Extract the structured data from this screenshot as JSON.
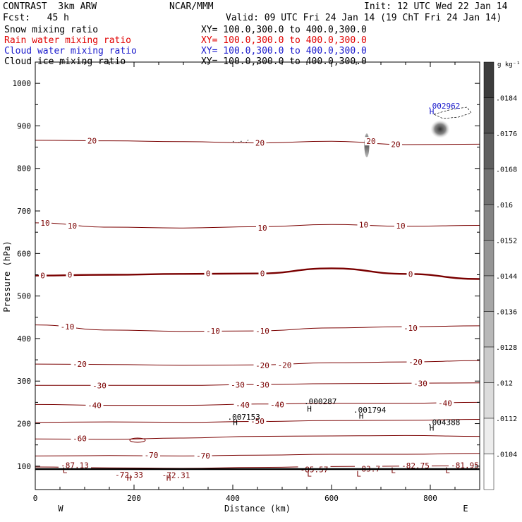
{
  "header": {
    "model": "CONTRAST  3km ARW",
    "org": "NCAR/MMM",
    "init": "Init: 12 UTC Wed 22 Jan 14",
    "fcst": "Fcst:   45 h",
    "valid": "Valid: 09 UTC Fri 24 Jan 14 (19 ChT Fri 24 Jan 14)"
  },
  "fields": [
    {
      "label": "Snow mixing ratio",
      "xy": "XY= 100.0,300.0 to 400.0,300.0",
      "color": "#000000"
    },
    {
      "label": "Rain water mixing ratio",
      "xy": "XY= 100.0,300.0 to 400.0,300.0",
      "color": "#e00000"
    },
    {
      "label": "Cloud water mixing ratio",
      "xy": "XY= 100.0,300.0 to 400.0,300.0",
      "color": "#1a1acc"
    },
    {
      "label": "Cloud ice mixing ratio",
      "xy": "XY= 100.0,300.0 to 400.0,300.0",
      "color": "#000000"
    }
  ],
  "chart_data": {
    "type": "cross-section contour",
    "xlabel": "Distance (km)",
    "ylabel": "Pressure (hPa)",
    "xlim": [
      0,
      900
    ],
    "ylim": [
      1050,
      45
    ],
    "x_ticks": [
      0,
      200,
      400,
      600,
      800
    ],
    "y_ticks": [
      100,
      200,
      300,
      400,
      500,
      600,
      700,
      800,
      900,
      1000
    ],
    "end_labels": {
      "left": "W",
      "right": "E"
    },
    "colorbar": {
      "units": "g kg⁻¹",
      "labels": [
        ".0184",
        ".0176",
        ".0168",
        ".016",
        ".0152",
        ".0144",
        ".0136",
        ".0128",
        ".012",
        ".0112",
        ".0104"
      ]
    },
    "temperature_contours": [
      {
        "level": -80,
        "points": [
          [
            0,
            98
          ],
          [
            150,
            96
          ],
          [
            300,
            95
          ],
          [
            450,
            97
          ],
          [
            600,
            99
          ],
          [
            750,
            100
          ],
          [
            900,
            101
          ]
        ]
      },
      {
        "level": -70,
        "points": [
          [
            0,
            124
          ],
          [
            150,
            125
          ],
          [
            300,
            124
          ],
          [
            450,
            126
          ],
          [
            600,
            128
          ],
          [
            750,
            128
          ],
          [
            900,
            130
          ]
        ]
      },
      {
        "level": -60,
        "points": [
          [
            0,
            164
          ],
          [
            150,
            163
          ],
          [
            300,
            166
          ],
          [
            450,
            170
          ],
          [
            600,
            171
          ],
          [
            750,
            172
          ],
          [
            900,
            170
          ]
        ]
      },
      {
        "level": -50,
        "points": [
          [
            0,
            203
          ],
          [
            150,
            204
          ],
          [
            300,
            203
          ],
          [
            450,
            205
          ],
          [
            600,
            207
          ],
          [
            750,
            208
          ],
          [
            900,
            210
          ]
        ]
      },
      {
        "level": -40,
        "points": [
          [
            0,
            245
          ],
          [
            150,
            243
          ],
          [
            300,
            243
          ],
          [
            450,
            246
          ],
          [
            600,
            248
          ],
          [
            750,
            248
          ],
          [
            900,
            250
          ]
        ]
      },
      {
        "level": -30,
        "points": [
          [
            0,
            290
          ],
          [
            150,
            290
          ],
          [
            300,
            290
          ],
          [
            450,
            292
          ],
          [
            600,
            294
          ],
          [
            750,
            295
          ],
          [
            900,
            296
          ]
        ]
      },
      {
        "level": -20,
        "points": [
          [
            0,
            340
          ],
          [
            150,
            339
          ],
          [
            300,
            337
          ],
          [
            450,
            338
          ],
          [
            600,
            343
          ],
          [
            750,
            345
          ],
          [
            900,
            348
          ]
        ]
      },
      {
        "level": -10,
        "points": [
          [
            0,
            432
          ],
          [
            150,
            420
          ],
          [
            300,
            417
          ],
          [
            450,
            418
          ],
          [
            600,
            425
          ],
          [
            750,
            428
          ],
          [
            900,
            430
          ]
        ]
      },
      {
        "level": 0,
        "points": [
          [
            0,
            548
          ],
          [
            150,
            550
          ],
          [
            300,
            552
          ],
          [
            450,
            553
          ],
          [
            600,
            565
          ],
          [
            750,
            552
          ],
          [
            900,
            540
          ]
        ]
      },
      {
        "level": 10,
        "points": [
          [
            0,
            672
          ],
          [
            150,
            662
          ],
          [
            300,
            660
          ],
          [
            450,
            663
          ],
          [
            600,
            668
          ],
          [
            750,
            664
          ],
          [
            900,
            666
          ]
        ]
      },
      {
        "level": 20,
        "points": [
          [
            0,
            866
          ],
          [
            150,
            865
          ],
          [
            300,
            863
          ],
          [
            450,
            860
          ],
          [
            600,
            864
          ],
          [
            750,
            856
          ],
          [
            900,
            857
          ]
        ]
      }
    ],
    "temperature_labels": [
      {
        "text": "-87.13",
        "x": 80,
        "p": 102
      },
      {
        "text": "-72.33",
        "x": 190,
        "p": 80
      },
      {
        "text": "-72.31",
        "x": 285,
        "p": 79
      },
      {
        "text": "-85.57",
        "x": 565,
        "p": 92
      },
      {
        "text": "-83.7",
        "x": 675,
        "p": 94
      },
      {
        "text": "-82.75",
        "x": 770,
        "p": 101
      },
      {
        "text": "-81.95",
        "x": 870,
        "p": 102
      },
      {
        "text": "-70",
        "x": 235,
        "p": 126
      },
      {
        "text": "-70",
        "x": 340,
        "p": 125
      },
      {
        "text": "-60",
        "x": 90,
        "p": 165
      },
      {
        "text": "-50",
        "x": 450,
        "p": 206
      },
      {
        "text": "-40",
        "x": 120,
        "p": 243
      },
      {
        "text": "-40",
        "x": 420,
        "p": 244
      },
      {
        "text": "-40",
        "x": 490,
        "p": 245
      },
      {
        "text": "-40",
        "x": 830,
        "p": 248
      },
      {
        "text": "-30",
        "x": 130,
        "p": 290
      },
      {
        "text": "-30",
        "x": 410,
        "p": 291
      },
      {
        "text": "-30",
        "x": 460,
        "p": 291
      },
      {
        "text": "-30",
        "x": 780,
        "p": 295
      },
      {
        "text": "-20",
        "x": 90,
        "p": 340
      },
      {
        "text": "-20",
        "x": 460,
        "p": 337
      },
      {
        "text": "-20",
        "x": 505,
        "p": 338
      },
      {
        "text": "-20",
        "x": 770,
        "p": 345
      },
      {
        "text": "-10",
        "x": 65,
        "p": 428
      },
      {
        "text": "-10",
        "x": 360,
        "p": 418
      },
      {
        "text": "-10",
        "x": 460,
        "p": 418
      },
      {
        "text": "-10",
        "x": 760,
        "p": 425
      },
      {
        "text": "0",
        "x": 15,
        "p": 548
      },
      {
        "text": "0",
        "x": 70,
        "p": 550
      },
      {
        "text": "0",
        "x": 350,
        "p": 553
      },
      {
        "text": "0",
        "x": 460,
        "p": 553
      },
      {
        "text": "0",
        "x": 760,
        "p": 552
      },
      {
        "text": "10",
        "x": 20,
        "p": 672
      },
      {
        "text": "10",
        "x": 75,
        "p": 665
      },
      {
        "text": "10",
        "x": 460,
        "p": 660
      },
      {
        "text": "10",
        "x": 665,
        "p": 668
      },
      {
        "text": "10",
        "x": 740,
        "p": 665
      },
      {
        "text": "20",
        "x": 115,
        "p": 865
      },
      {
        "text": "20",
        "x": 455,
        "p": 860
      },
      {
        "text": "20",
        "x": 680,
        "p": 864
      },
      {
        "text": "20",
        "x": 730,
        "p": 857
      }
    ],
    "extrema": [
      {
        "type": "L",
        "x": 60,
        "p": 91,
        "color": "#7a0000"
      },
      {
        "type": "H",
        "x": 190,
        "p": 72,
        "color": "#7a0000"
      },
      {
        "type": "H",
        "x": 270,
        "p": 72,
        "color": "#7a0000"
      },
      {
        "type": "L",
        "x": 555,
        "p": 82,
        "color": "#7a0000"
      },
      {
        "type": "L",
        "x": 655,
        "p": 82,
        "color": "#7a0000"
      },
      {
        "type": "L",
        "x": 725,
        "p": 91,
        "color": "#7a0000"
      },
      {
        "type": "L",
        "x": 835,
        "p": 91,
        "color": "#7a0000"
      },
      {
        "type": "H",
        "x": 405,
        "p": 203,
        "color": "#000000"
      },
      {
        "type": "H",
        "x": 555,
        "p": 235,
        "color": "#000000"
      },
      {
        "type": "H",
        "x": 660,
        "p": 218,
        "color": "#000000"
      },
      {
        "type": "H",
        "x": 803,
        "p": 190,
        "color": "#000000"
      },
      {
        "type": "H",
        "x": 803,
        "p": 934,
        "color": "#1a1acc"
      }
    ],
    "maxima_labels": [
      {
        "text": ".007153",
        "x": 395,
        "p": 216,
        "color": "#000000"
      },
      {
        "text": ".000287",
        "x": 550,
        "p": 252,
        "color": "#000000"
      },
      {
        "text": ".001794",
        "x": 650,
        "p": 232,
        "color": "#000000"
      },
      {
        "text": ".004388",
        "x": 800,
        "p": 203,
        "color": "#000000"
      },
      {
        "text": ".002962",
        "x": 800,
        "p": 947,
        "color": "#1a1acc"
      }
    ]
  }
}
